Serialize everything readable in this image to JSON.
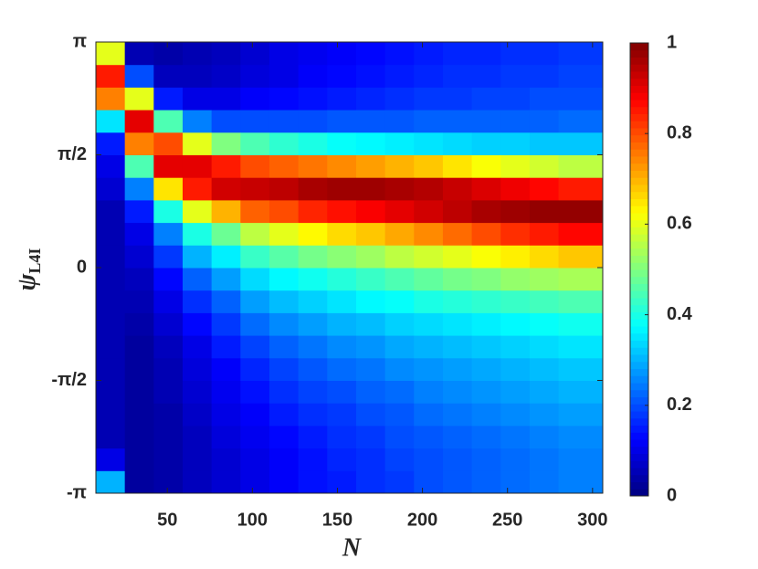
{
  "chart_data": {
    "type": "heatmap",
    "xlabel": "N",
    "ylabel": "ψ",
    "ylabel_sub": "L4I",
    "xbins": [
      8,
      25,
      42,
      59,
      76,
      93,
      110,
      127,
      144,
      161,
      178,
      195,
      212,
      229,
      246,
      263,
      280,
      306
    ],
    "ybins": [
      -3.1416,
      -2.8274,
      -2.5133,
      -2.1991,
      -1.885,
      -1.5708,
      -1.2566,
      -0.9425,
      -0.6283,
      -0.3142,
      0,
      0.3142,
      0.6283,
      0.9425,
      1.2566,
      1.5708,
      1.885,
      2.1991,
      2.5133,
      2.8274,
      3.1416
    ],
    "values": [
      [
        0.3,
        0.1,
        0.05,
        0.05,
        0.05,
        0.05,
        0.05,
        0.05,
        0.05,
        0.05,
        0.05,
        0.05,
        0.05,
        0.08,
        0.1,
        0.15,
        0.35,
        0.75,
        0.85,
        0.6
      ],
      [
        0.03,
        0.03,
        0.03,
        0.03,
        0.03,
        0.03,
        0.03,
        0.04,
        0.05,
        0.06,
        0.08,
        0.1,
        0.15,
        0.25,
        0.45,
        0.75,
        0.9,
        0.6,
        0.2,
        0.05
      ],
      [
        0.04,
        0.04,
        0.04,
        0.04,
        0.05,
        0.05,
        0.06,
        0.08,
        0.1,
        0.13,
        0.18,
        0.25,
        0.4,
        0.65,
        0.9,
        0.8,
        0.45,
        0.15,
        0.06,
        0.04
      ],
      [
        0.06,
        0.06,
        0.06,
        0.07,
        0.08,
        0.09,
        0.1,
        0.13,
        0.17,
        0.22,
        0.3,
        0.4,
        0.6,
        0.85,
        0.9,
        0.6,
        0.25,
        0.1,
        0.06,
        0.05
      ],
      [
        0.08,
        0.08,
        0.09,
        0.1,
        0.11,
        0.12,
        0.15,
        0.18,
        0.22,
        0.28,
        0.36,
        0.48,
        0.7,
        0.92,
        0.85,
        0.5,
        0.2,
        0.1,
        0.07,
        0.06
      ],
      [
        0.1,
        0.1,
        0.11,
        0.12,
        0.14,
        0.16,
        0.19,
        0.23,
        0.28,
        0.34,
        0.43,
        0.56,
        0.78,
        0.93,
        0.8,
        0.45,
        0.2,
        0.12,
        0.09,
        0.08
      ],
      [
        0.12,
        0.12,
        0.13,
        0.15,
        0.17,
        0.19,
        0.22,
        0.26,
        0.31,
        0.37,
        0.46,
        0.6,
        0.8,
        0.94,
        0.78,
        0.42,
        0.2,
        0.13,
        0.1,
        0.1
      ],
      [
        0.14,
        0.14,
        0.15,
        0.17,
        0.19,
        0.21,
        0.24,
        0.28,
        0.33,
        0.39,
        0.49,
        0.63,
        0.84,
        0.96,
        0.76,
        0.4,
        0.2,
        0.14,
        0.12,
        0.11
      ],
      [
        0.15,
        0.16,
        0.17,
        0.18,
        0.2,
        0.23,
        0.26,
        0.3,
        0.35,
        0.41,
        0.51,
        0.66,
        0.86,
        0.97,
        0.74,
        0.38,
        0.21,
        0.15,
        0.13,
        0.12
      ],
      [
        0.17,
        0.17,
        0.18,
        0.2,
        0.22,
        0.24,
        0.27,
        0.31,
        0.37,
        0.43,
        0.53,
        0.68,
        0.88,
        0.97,
        0.72,
        0.37,
        0.21,
        0.16,
        0.14,
        0.13
      ],
      [
        0.18,
        0.19,
        0.2,
        0.21,
        0.23,
        0.26,
        0.29,
        0.33,
        0.38,
        0.45,
        0.56,
        0.71,
        0.9,
        0.96,
        0.7,
        0.36,
        0.21,
        0.17,
        0.15,
        0.14
      ],
      [
        0.2,
        0.2,
        0.21,
        0.23,
        0.25,
        0.27,
        0.3,
        0.34,
        0.4,
        0.47,
        0.58,
        0.74,
        0.92,
        0.95,
        0.68,
        0.35,
        0.22,
        0.18,
        0.16,
        0.15
      ],
      [
        0.21,
        0.21,
        0.22,
        0.24,
        0.26,
        0.28,
        0.31,
        0.35,
        0.41,
        0.49,
        0.6,
        0.77,
        0.94,
        0.93,
        0.65,
        0.34,
        0.22,
        0.18,
        0.17,
        0.16
      ],
      [
        0.22,
        0.22,
        0.23,
        0.25,
        0.27,
        0.29,
        0.32,
        0.36,
        0.42,
        0.5,
        0.62,
        0.8,
        0.96,
        0.91,
        0.62,
        0.33,
        0.22,
        0.19,
        0.17,
        0.16
      ],
      [
        0.23,
        0.23,
        0.24,
        0.26,
        0.28,
        0.3,
        0.33,
        0.37,
        0.43,
        0.52,
        0.64,
        0.83,
        0.97,
        0.89,
        0.6,
        0.33,
        0.22,
        0.19,
        0.18,
        0.17
      ],
      [
        0.24,
        0.24,
        0.25,
        0.27,
        0.29,
        0.31,
        0.34,
        0.38,
        0.44,
        0.53,
        0.66,
        0.85,
        0.98,
        0.87,
        0.58,
        0.32,
        0.22,
        0.2,
        0.18,
        0.17
      ],
      [
        0.25,
        0.25,
        0.26,
        0.28,
        0.3,
        0.32,
        0.35,
        0.39,
        0.45,
        0.54,
        0.68,
        0.87,
        0.98,
        0.85,
        0.56,
        0.32,
        0.23,
        0.2,
        0.19,
        0.18
      ]
    ],
    "xlim": [
      8,
      306
    ],
    "xticks": [
      50,
      100,
      150,
      200,
      250,
      300
    ],
    "ylim": [
      -3.1416,
      3.1416
    ],
    "yticks": [
      {
        "value": -3.1416,
        "label": "-π"
      },
      {
        "value": -1.5708,
        "label": "-π/2"
      },
      {
        "value": 0,
        "label": "0"
      },
      {
        "value": 1.5708,
        "label": "π/2"
      },
      {
        "value": 3.1416,
        "label": "π"
      }
    ],
    "colormap": "jet",
    "clim": [
      0,
      1
    ],
    "cticks": [
      0,
      0.2,
      0.4,
      0.6,
      0.8,
      1
    ]
  }
}
